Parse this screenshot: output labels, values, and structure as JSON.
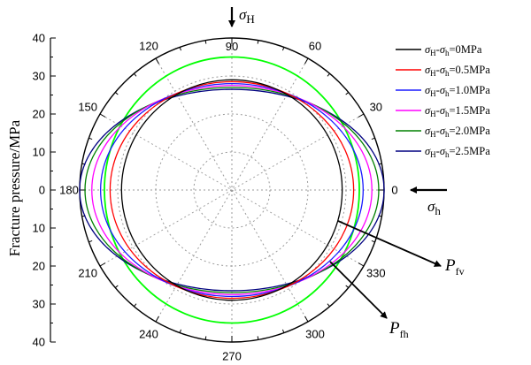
{
  "chart_data": {
    "type": "polar",
    "ylabel": "Fracture pressure/MPa",
    "radial_ticks_upper": [
      "40",
      "30",
      "20",
      "10",
      "0"
    ],
    "radial_ticks_lower": [
      "0",
      "10",
      "20",
      "30",
      "40"
    ],
    "rlim": [
      0,
      40
    ],
    "angle_ticks": [
      "0",
      "30",
      "60",
      "90",
      "120",
      "150",
      "180",
      "210",
      "240",
      "270",
      "300",
      "330"
    ],
    "grid": true,
    "legend_position": "right",
    "series": [
      {
        "name": "σH-σh=0MPa",
        "name_parts": [
          "σ",
          "H",
          "-σ",
          "h",
          "=0MPa"
        ],
        "color": "#000000",
        "a": 29.0,
        "b": 29.0
      },
      {
        "name": "σH-σh=0.5MPa",
        "name_parts": [
          "σ",
          "H",
          "-σ",
          "h",
          "=0.5MPa"
        ],
        "color": "#ff0000",
        "a": 32.0,
        "b": 28.5
      },
      {
        "name": "σH-σh=1.0MPa",
        "name_parts": [
          "σ",
          "H",
          "-σ",
          "h",
          "=1.0MPa"
        ],
        "color": "#1a1aff",
        "a": 34.5,
        "b": 28.0
      },
      {
        "name": "σH-σh=1.5MPa",
        "name_parts": [
          "σ",
          "H",
          "-σ",
          "h",
          "=1.5MPa"
        ],
        "color": "#ff00ff",
        "a": 36.8,
        "b": 27.5
      },
      {
        "name": "σH-σh=2.0MPa",
        "name_parts": [
          "σ",
          "H",
          "-σ",
          "h",
          "=2.0MPa"
        ],
        "color": "#008000",
        "a": 38.6,
        "b": 27.0
      },
      {
        "name": "σH-σh=2.5MPa",
        "name_parts": [
          "σ",
          "H",
          "-σ",
          "h",
          "=2.5MPa"
        ],
        "color": "#000080",
        "a": 40.0,
        "b": 26.5
      },
      {
        "name": "",
        "color": "#00ff00",
        "a": 33.5,
        "b": 35.0
      }
    ],
    "annotations": {
      "sigma_H": {
        "symbol": "σ",
        "sub": "H"
      },
      "sigma_h": {
        "symbol": "σ",
        "sub": "h"
      },
      "P_fv": {
        "symbol": "P",
        "sub": "fv"
      },
      "P_fh": {
        "symbol": "P",
        "sub": "fh"
      }
    }
  }
}
